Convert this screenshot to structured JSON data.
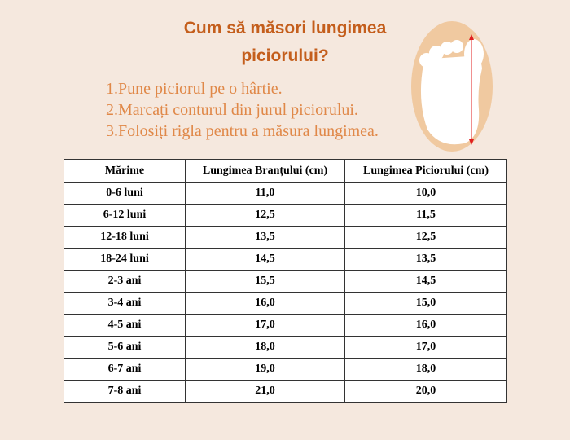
{
  "title": "Cum să măsori lungimea piciorului?",
  "steps": [
    "1.Pune piciorul pe o hârtie.",
    "2.Marcați conturul din jurul piciorului.",
    "3.Folosiți rigla pentru a măsura lungimea."
  ],
  "foot_image": {
    "icon": "foot-measure-icon",
    "arrow_color": "#e02020"
  },
  "table": {
    "headers": [
      "Mărime",
      "Lungimea Branțului  (cm)",
      "Lungimea Piciorului  (cm)"
    ],
    "rows": [
      [
        "0-6 luni",
        "11,0",
        "10,0"
      ],
      [
        "6-12 luni",
        "12,5",
        "11,5"
      ],
      [
        "12-18 luni",
        "13,5",
        "12,5"
      ],
      [
        "18-24 luni",
        "14,5",
        "13,5"
      ],
      [
        "2-3 ani",
        "15,5",
        "14,5"
      ],
      [
        "3-4 ani",
        "16,0",
        "15,0"
      ],
      [
        "4-5 ani",
        "17,0",
        "16,0"
      ],
      [
        "5-6 ani",
        "18,0",
        "17,0"
      ],
      [
        "6-7 ani",
        "19,0",
        "18,0"
      ],
      [
        "7-8 ani",
        "21,0",
        "20,0"
      ]
    ]
  }
}
